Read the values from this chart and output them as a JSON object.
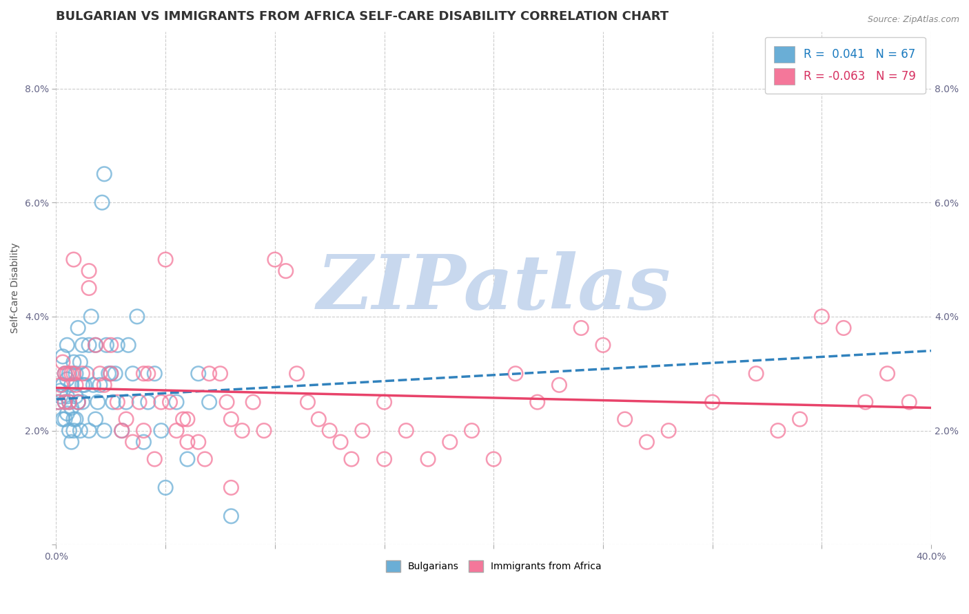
{
  "title": "BULGARIAN VS IMMIGRANTS FROM AFRICA SELF-CARE DISABILITY CORRELATION CHART",
  "source": "Source: ZipAtlas.com",
  "ylabel": "Self-Care Disability",
  "xlim": [
    0,
    0.4
  ],
  "ylim": [
    0,
    0.09
  ],
  "xticks": [
    0.0,
    0.05,
    0.1,
    0.15,
    0.2,
    0.25,
    0.3,
    0.35,
    0.4
  ],
  "yticks": [
    0.0,
    0.02,
    0.04,
    0.06,
    0.08
  ],
  "ytick_labels": [
    "",
    "2.0%",
    "4.0%",
    "6.0%",
    "8.0%"
  ],
  "xtick_labels": [
    "0.0%",
    "",
    "",
    "",
    "",
    "",
    "",
    "",
    "40.0%"
  ],
  "r_blue": 0.041,
  "n_blue": 67,
  "r_pink": -0.063,
  "n_pink": 79,
  "blue_color": "#6aaed6",
  "pink_color": "#f4779a",
  "blue_line_color": "#3182bd",
  "pink_line_color": "#e8436a",
  "background_color": "#ffffff",
  "grid_color": "#cccccc",
  "watermark_text": "ZIPatlas",
  "watermark_color": "#c8d8ee",
  "title_fontsize": 13,
  "axis_label_fontsize": 10,
  "tick_fontsize": 10,
  "blue_scatter_x": [
    0.001,
    0.002,
    0.003,
    0.003,
    0.004,
    0.004,
    0.005,
    0.005,
    0.005,
    0.006,
    0.006,
    0.007,
    0.007,
    0.007,
    0.008,
    0.008,
    0.009,
    0.009,
    0.01,
    0.01,
    0.011,
    0.011,
    0.012,
    0.012,
    0.013,
    0.014,
    0.015,
    0.016,
    0.017,
    0.018,
    0.019,
    0.02,
    0.021,
    0.022,
    0.023,
    0.024,
    0.025,
    0.026,
    0.027,
    0.028,
    0.03,
    0.032,
    0.033,
    0.035,
    0.037,
    0.04,
    0.042,
    0.045,
    0.048,
    0.05,
    0.055,
    0.06,
    0.065,
    0.07,
    0.002,
    0.003,
    0.004,
    0.005,
    0.006,
    0.008,
    0.009,
    0.01,
    0.012,
    0.015,
    0.018,
    0.022,
    0.08
  ],
  "blue_scatter_y": [
    0.025,
    0.027,
    0.022,
    0.028,
    0.025,
    0.03,
    0.023,
    0.029,
    0.035,
    0.02,
    0.03,
    0.018,
    0.024,
    0.028,
    0.02,
    0.032,
    0.022,
    0.03,
    0.025,
    0.038,
    0.02,
    0.032,
    0.025,
    0.035,
    0.028,
    0.03,
    0.035,
    0.04,
    0.028,
    0.035,
    0.025,
    0.028,
    0.06,
    0.065,
    0.035,
    0.03,
    0.03,
    0.025,
    0.03,
    0.035,
    0.02,
    0.025,
    0.035,
    0.03,
    0.04,
    0.018,
    0.025,
    0.03,
    0.02,
    0.01,
    0.025,
    0.015,
    0.03,
    0.025,
    0.026,
    0.033,
    0.022,
    0.026,
    0.025,
    0.022,
    0.026,
    0.025,
    0.028,
    0.02,
    0.022,
    0.02,
    0.005
  ],
  "pink_scatter_x": [
    0.001,
    0.002,
    0.003,
    0.004,
    0.005,
    0.006,
    0.007,
    0.008,
    0.009,
    0.01,
    0.012,
    0.015,
    0.018,
    0.02,
    0.022,
    0.025,
    0.028,
    0.03,
    0.032,
    0.035,
    0.038,
    0.04,
    0.042,
    0.045,
    0.048,
    0.05,
    0.052,
    0.055,
    0.058,
    0.06,
    0.065,
    0.068,
    0.07,
    0.075,
    0.078,
    0.08,
    0.085,
    0.09,
    0.095,
    0.1,
    0.105,
    0.11,
    0.115,
    0.12,
    0.125,
    0.13,
    0.135,
    0.14,
    0.15,
    0.16,
    0.17,
    0.18,
    0.19,
    0.2,
    0.21,
    0.22,
    0.23,
    0.24,
    0.25,
    0.26,
    0.28,
    0.3,
    0.32,
    0.34,
    0.35,
    0.36,
    0.37,
    0.38,
    0.39,
    0.33,
    0.27,
    0.15,
    0.08,
    0.06,
    0.04,
    0.025,
    0.015,
    0.008,
    0.004
  ],
  "pink_scatter_y": [
    0.025,
    0.028,
    0.032,
    0.025,
    0.03,
    0.025,
    0.03,
    0.03,
    0.028,
    0.025,
    0.03,
    0.048,
    0.035,
    0.03,
    0.028,
    0.03,
    0.025,
    0.02,
    0.022,
    0.018,
    0.025,
    0.02,
    0.03,
    0.015,
    0.025,
    0.05,
    0.025,
    0.02,
    0.022,
    0.018,
    0.018,
    0.015,
    0.03,
    0.03,
    0.025,
    0.022,
    0.02,
    0.025,
    0.02,
    0.05,
    0.048,
    0.03,
    0.025,
    0.022,
    0.02,
    0.018,
    0.015,
    0.02,
    0.025,
    0.02,
    0.015,
    0.018,
    0.02,
    0.015,
    0.03,
    0.025,
    0.028,
    0.038,
    0.035,
    0.022,
    0.02,
    0.025,
    0.03,
    0.022,
    0.04,
    0.038,
    0.025,
    0.03,
    0.025,
    0.02,
    0.018,
    0.015,
    0.01,
    0.022,
    0.03,
    0.035,
    0.045,
    0.05,
    0.03
  ],
  "blue_trendline_x": [
    0.0,
    0.4
  ],
  "blue_trendline_y": [
    0.0255,
    0.034
  ],
  "pink_trendline_x": [
    0.0,
    0.4
  ],
  "pink_trendline_y": [
    0.0275,
    0.024
  ]
}
